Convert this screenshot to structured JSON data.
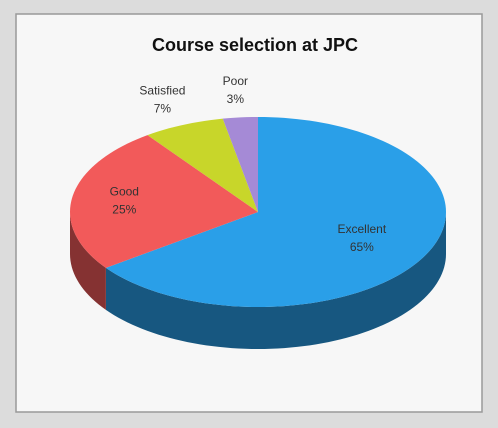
{
  "chart_data": {
    "type": "pie",
    "title": "Course selection at JPC",
    "categories": [
      "Excellent",
      "Good",
      "Satisfied",
      "Poor"
    ],
    "values": [
      65,
      25,
      7,
      3
    ],
    "value_labels": [
      "65%",
      "25%",
      "7%",
      "3%"
    ],
    "colors": [
      "#2a9fe8",
      "#f25a5a",
      "#c8d62a",
      "#a58ad6"
    ]
  }
}
